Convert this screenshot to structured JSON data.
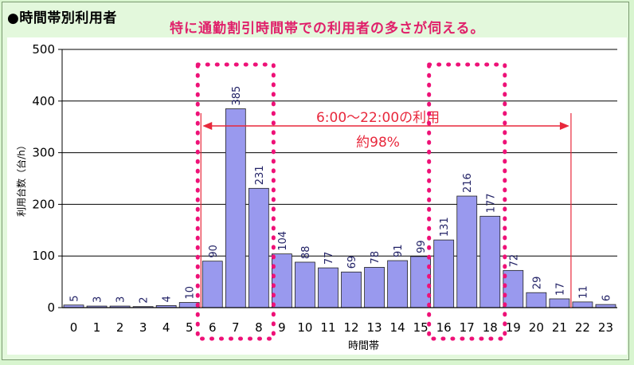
{
  "title": "●時間帯別利用者",
  "caption": "特に通勤割引時間帯での利用者の多さが伺える。",
  "chart_data": {
    "type": "bar",
    "categories": [
      "0",
      "1",
      "2",
      "3",
      "4",
      "5",
      "6",
      "7",
      "8",
      "9",
      "10",
      "11",
      "12",
      "13",
      "14",
      "15",
      "16",
      "17",
      "18",
      "19",
      "20",
      "21",
      "22",
      "23"
    ],
    "values": [
      5,
      3,
      3,
      2,
      4,
      10,
      90,
      385,
      231,
      104,
      88,
      77,
      69,
      78,
      91,
      99,
      131,
      216,
      177,
      72,
      29,
      17,
      11,
      6
    ],
    "data_labels": [
      "5",
      "3",
      "3",
      "2",
      "4",
      "10",
      "90",
      "385",
      "231",
      "104",
      "88",
      "77",
      "69",
      "78",
      "91",
      "99",
      "131",
      "216",
      "177",
      "72",
      "29",
      "17",
      "11",
      "6"
    ],
    "xlabel": "時間帯",
    "ylabel": "利用台数（台/h）",
    "ylim": [
      0,
      500
    ],
    "yticks": [
      0,
      100,
      200,
      300,
      400,
      500
    ],
    "grid": true,
    "bar_color": "#9999ee",
    "bar_stroke": "#222222",
    "annotation": {
      "line1": "6:00～22:00の利用",
      "line2": "約98%",
      "from": 6,
      "to": 22,
      "color": "#e8283c"
    },
    "highlight_ranges": [
      [
        6,
        8
      ],
      [
        16,
        18
      ]
    ],
    "highlight_color": "#ee1177"
  }
}
